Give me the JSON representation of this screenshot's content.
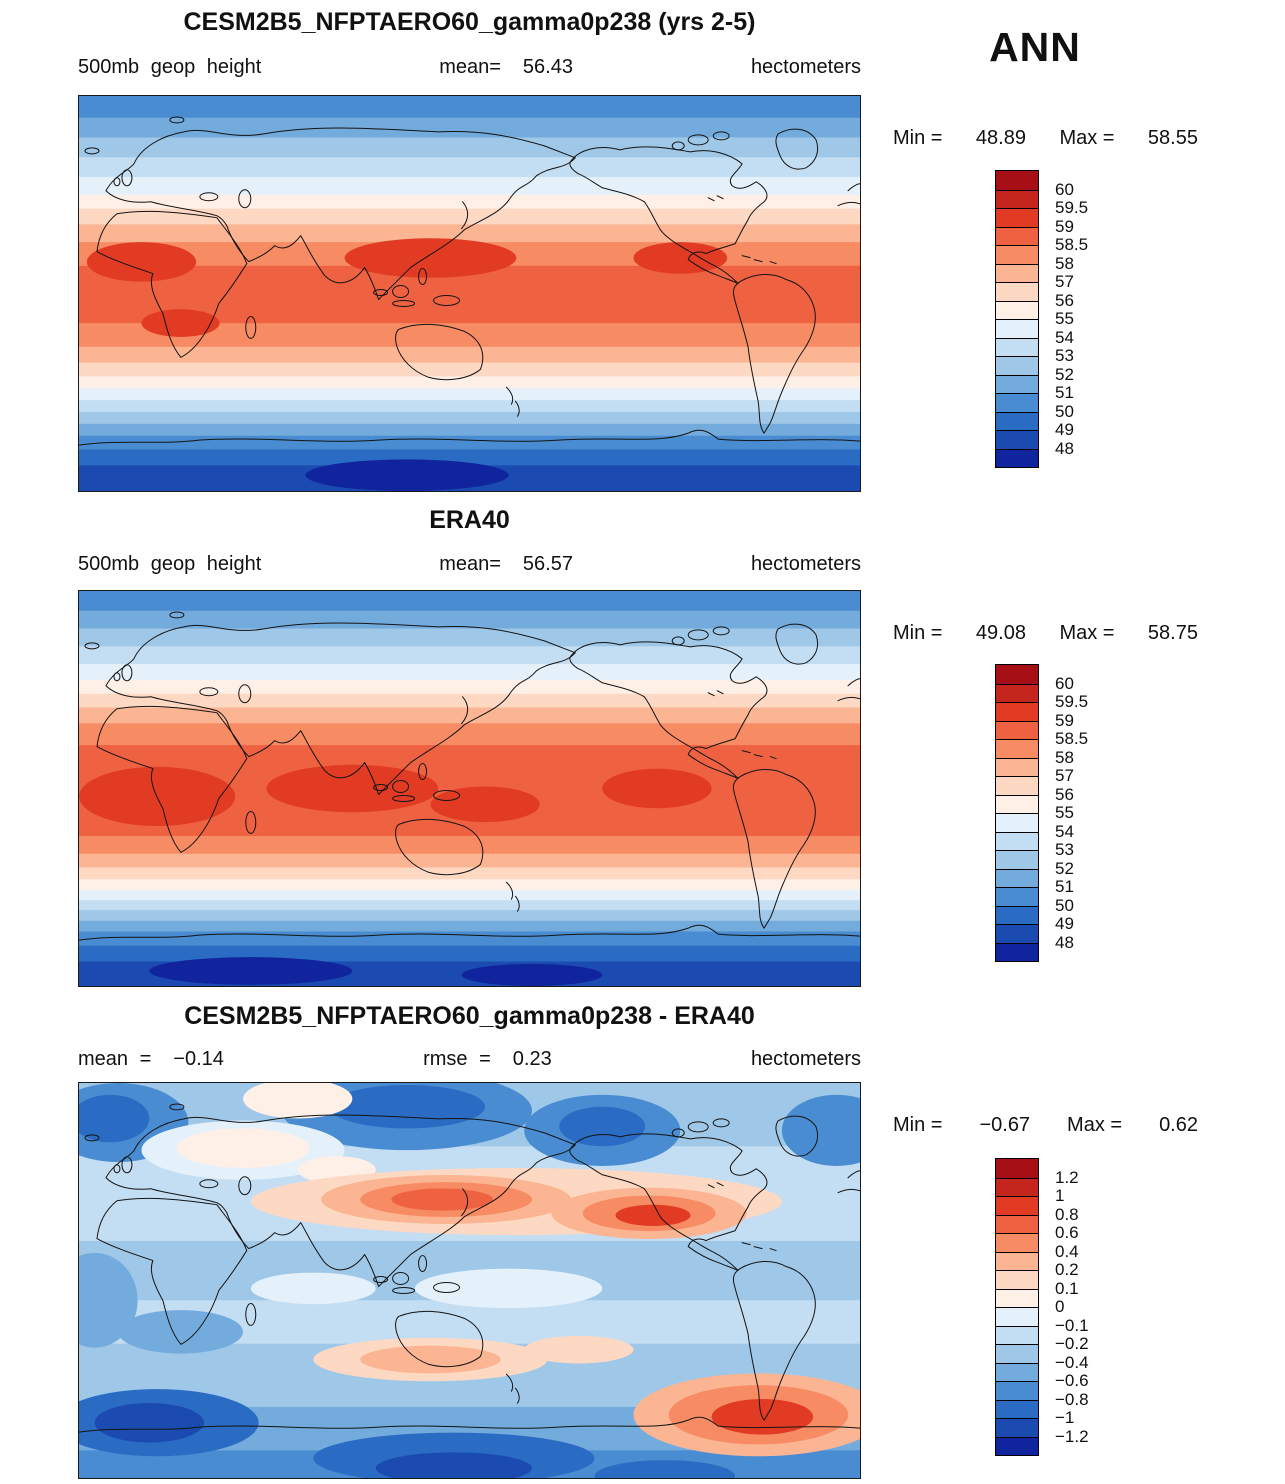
{
  "header": {
    "season": "ANN"
  },
  "panels": [
    {
      "title": "CESM2B5_NFPTAERO60_gamma0p238 (yrs 2-5)",
      "field": "500mb geop height",
      "mean_label": "mean=",
      "mean": "56.43",
      "units": "hectometers",
      "min_label": "Min =",
      "min": "48.89",
      "max_label": "Max =",
      "max": "58.55",
      "colorbar": {
        "labels": [
          "60",
          "59.5",
          "59",
          "58.5",
          "58",
          "57",
          "56",
          "55",
          "54",
          "53",
          "52",
          "51",
          "50",
          "49",
          "48"
        ],
        "colors": [
          "#a50f15",
          "#c4261d",
          "#e13b23",
          "#ef6241",
          "#f68b64",
          "#fbb593",
          "#fdd9c4",
          "#fef0e7",
          "#e4f0fa",
          "#c3ddf2",
          "#9ec7e8",
          "#74abdd",
          "#4a8cd1",
          "#2a6cc4",
          "#1b4bb0",
          "#10249e"
        ]
      }
    },
    {
      "title": "ERA40",
      "field": "500mb geop height",
      "mean_label": "mean=",
      "mean": "56.57",
      "units": "hectometers",
      "min_label": "Min =",
      "min": "49.08",
      "max_label": "Max =",
      "max": "58.75",
      "colorbar": {
        "labels": [
          "60",
          "59.5",
          "59",
          "58.5",
          "58",
          "57",
          "56",
          "55",
          "54",
          "53",
          "52",
          "51",
          "50",
          "49",
          "48"
        ],
        "colors": [
          "#a50f15",
          "#c4261d",
          "#e13b23",
          "#ef6241",
          "#f68b64",
          "#fbb593",
          "#fdd9c4",
          "#fef0e7",
          "#e4f0fa",
          "#c3ddf2",
          "#9ec7e8",
          "#74abdd",
          "#4a8cd1",
          "#2a6cc4",
          "#1b4bb0",
          "#10249e"
        ]
      }
    },
    {
      "title": "CESM2B5_NFPTAERO60_gamma0p238 - ERA40",
      "mean_label": "mean =",
      "mean": "−0.14",
      "rmse_label": "rmse =",
      "rmse": "0.23",
      "units": "hectometers",
      "min_label": "Min =",
      "min": "−0.67",
      "max_label": "Max =",
      "max": "0.62",
      "colorbar": {
        "labels": [
          "1.2",
          "1",
          "0.8",
          "0.6",
          "0.4",
          "0.2",
          "0.1",
          "0",
          "−0.1",
          "−0.2",
          "−0.4",
          "−0.6",
          "−0.8",
          "−1",
          "−1.2"
        ],
        "colors": [
          "#a50f15",
          "#c4261d",
          "#e13b23",
          "#ef6241",
          "#f68b64",
          "#fbb593",
          "#fdd9c4",
          "#fef0e7",
          "#e4f0fa",
          "#c3ddf2",
          "#9ec7e8",
          "#74abdd",
          "#4a8cd1",
          "#2a6cc4",
          "#1b4bb0",
          "#10249e"
        ]
      }
    }
  ],
  "chart_data": [
    {
      "type": "heatmap",
      "subtype": "filled-contour world map, cylindrical equidistant",
      "title": "CESM2B5_NFPTAERO60_gamma0p238 (yrs 2-5)",
      "season": "ANN",
      "variable": "500mb geop height",
      "units": "hectometers",
      "stats": {
        "mean": 56.43,
        "min": 48.89,
        "max": 58.55
      },
      "contour_levels": [
        48,
        49,
        50,
        51,
        52,
        53,
        54,
        55,
        56,
        57,
        58,
        58.5,
        59,
        59.5,
        60
      ],
      "palette_top_to_bottom": [
        "#a50f15",
        "#c4261d",
        "#e13b23",
        "#ef6241",
        "#f68b64",
        "#fbb593",
        "#fdd9c4",
        "#fef0e7",
        "#e4f0fa",
        "#c3ddf2",
        "#9ec7e8",
        "#74abdd",
        "#4a8cd1",
        "#2a6cc4",
        "#1b4bb0",
        "#10249e"
      ],
      "pattern": "zonally banded field: ~58.5 hm across tropics decreasing poleward to ~48-49 hm near Antarctica"
    },
    {
      "type": "heatmap",
      "subtype": "filled-contour world map, cylindrical equidistant",
      "title": "ERA40",
      "season": "ANN",
      "variable": "500mb geop height",
      "units": "hectometers",
      "stats": {
        "mean": 56.57,
        "min": 49.08,
        "max": 58.75
      },
      "contour_levels": [
        48,
        49,
        50,
        51,
        52,
        53,
        54,
        55,
        56,
        57,
        58,
        58.5,
        59,
        59.5,
        60
      ],
      "palette_top_to_bottom": [
        "#a50f15",
        "#c4261d",
        "#e13b23",
        "#ef6241",
        "#f68b64",
        "#fbb593",
        "#fdd9c4",
        "#fef0e7",
        "#e4f0fa",
        "#c3ddf2",
        "#9ec7e8",
        "#74abdd",
        "#4a8cd1",
        "#2a6cc4",
        "#1b4bb0",
        "#10249e"
      ],
      "pattern": "zonally banded field: ~58.5-59 hm across tropics decreasing poleward to ~49 hm near Antarctica"
    },
    {
      "type": "heatmap",
      "subtype": "filled-contour difference map, cylindrical equidistant",
      "title": "CESM2B5_NFPTAERO60_gamma0p238 - ERA40",
      "season": "ANN",
      "variable": "500mb geop height difference",
      "units": "hectometers",
      "stats": {
        "mean": -0.14,
        "rmse": 0.23,
        "min": -0.67,
        "max": 0.62
      },
      "contour_levels": [
        -1.2,
        -1,
        -0.8,
        -0.6,
        -0.4,
        -0.2,
        -0.1,
        0,
        0.1,
        0.2,
        0.4,
        0.6,
        0.8,
        1,
        1.2
      ],
      "palette_top_to_bottom": [
        "#a50f15",
        "#c4261d",
        "#e13b23",
        "#ef6241",
        "#f68b64",
        "#fbb593",
        "#fdd9c4",
        "#fef0e7",
        "#e4f0fa",
        "#c3ddf2",
        "#9ec7e8",
        "#74abdd",
        "#4a8cd1",
        "#2a6cc4",
        "#1b4bb0",
        "#10249e"
      ],
      "pattern": "mostly weak negative (light blue); positive lobes (+0.4 to +0.6) over N Pacific, N America and S Atlantic; negative lobes (-0.4 to -0.7) over Nordic seas, Bering region and Southern Ocean"
    }
  ],
  "map_render": [
    {
      "bands": [
        [
          0.0,
          "#4a8cd1"
        ],
        [
          0.055,
          "#74abdd"
        ],
        [
          0.105,
          "#9ec7e8"
        ],
        [
          0.155,
          "#c3ddf2"
        ],
        [
          0.205,
          "#e4f0fa"
        ],
        [
          0.25,
          "#fef0e7"
        ],
        [
          0.285,
          "#fdd9c4"
        ],
        [
          0.325,
          "#fbb593"
        ],
        [
          0.37,
          "#f68b64"
        ],
        [
          0.43,
          "#ef6241"
        ],
        [
          0.575,
          "#f68b64"
        ],
        [
          0.635,
          "#fbb593"
        ],
        [
          0.675,
          "#fdd9c4"
        ],
        [
          0.71,
          "#fef0e7"
        ],
        [
          0.74,
          "#e4f0fa"
        ],
        [
          0.77,
          "#c3ddf2"
        ],
        [
          0.8,
          "#9ec7e8"
        ],
        [
          0.83,
          "#74abdd"
        ],
        [
          0.86,
          "#4a8cd1"
        ],
        [
          0.895,
          "#2a6cc4"
        ],
        [
          0.935,
          "#1b4bb0"
        ]
      ],
      "blobs": [
        [
          0.08,
          0.42,
          0.07,
          0.05,
          "#e13b23"
        ],
        [
          0.13,
          0.575,
          0.05,
          0.035,
          "#e13b23"
        ],
        [
          0.45,
          0.41,
          0.11,
          0.05,
          "#e13b23"
        ],
        [
          0.77,
          0.41,
          0.06,
          0.04,
          "#e13b23"
        ],
        [
          0.42,
          0.96,
          0.13,
          0.04,
          "#10249e"
        ]
      ]
    },
    {
      "bands": [
        [
          0.0,
          "#4a8cd1"
        ],
        [
          0.05,
          "#74abdd"
        ],
        [
          0.095,
          "#9ec7e8"
        ],
        [
          0.14,
          "#c3ddf2"
        ],
        [
          0.185,
          "#e4f0fa"
        ],
        [
          0.225,
          "#fef0e7"
        ],
        [
          0.26,
          "#fdd9c4"
        ],
        [
          0.295,
          "#fbb593"
        ],
        [
          0.335,
          "#f68b64"
        ],
        [
          0.39,
          "#ef6241"
        ],
        [
          0.62,
          "#f68b64"
        ],
        [
          0.665,
          "#fbb593"
        ],
        [
          0.7,
          "#fdd9c4"
        ],
        [
          0.73,
          "#fef0e7"
        ],
        [
          0.757,
          "#e4f0fa"
        ],
        [
          0.783,
          "#c3ddf2"
        ],
        [
          0.808,
          "#9ec7e8"
        ],
        [
          0.835,
          "#74abdd"
        ],
        [
          0.862,
          "#4a8cd1"
        ],
        [
          0.898,
          "#2a6cc4"
        ],
        [
          0.938,
          "#1b4bb0"
        ]
      ],
      "blobs": [
        [
          0.1,
          0.52,
          0.1,
          0.075,
          "#e13b23"
        ],
        [
          0.35,
          0.5,
          0.11,
          0.06,
          "#e13b23"
        ],
        [
          0.52,
          0.54,
          0.07,
          0.045,
          "#e13b23"
        ],
        [
          0.74,
          0.5,
          0.07,
          0.05,
          "#e13b23"
        ],
        [
          0.22,
          0.962,
          0.13,
          0.035,
          "#10249e"
        ],
        [
          0.58,
          0.972,
          0.09,
          0.028,
          "#10249e"
        ]
      ]
    },
    {
      "bands": [
        [
          0.0,
          "#9ec7e8"
        ],
        [
          0.16,
          "#c3ddf2"
        ],
        [
          0.4,
          "#9ec7e8"
        ],
        [
          0.55,
          "#c3ddf2"
        ],
        [
          0.66,
          "#9ec7e8"
        ],
        [
          0.82,
          "#74abdd"
        ],
        [
          0.93,
          "#4a8cd1"
        ]
      ],
      "blobs": [
        [
          0.05,
          0.1,
          0.09,
          0.1,
          "#4a8cd1"
        ],
        [
          0.04,
          0.09,
          0.05,
          0.06,
          "#2a6cc4"
        ],
        [
          0.42,
          0.07,
          0.16,
          0.1,
          "#4a8cd1"
        ],
        [
          0.42,
          0.06,
          0.1,
          0.055,
          "#2a6cc4"
        ],
        [
          0.67,
          0.12,
          0.1,
          0.09,
          "#4a8cd1"
        ],
        [
          0.67,
          0.11,
          0.055,
          0.05,
          "#2a6cc4"
        ],
        [
          0.97,
          0.12,
          0.07,
          0.09,
          "#4a8cd1"
        ],
        [
          0.28,
          0.04,
          0.07,
          0.05,
          "#fef0e7"
        ],
        [
          0.21,
          0.17,
          0.13,
          0.075,
          "#e4f0fa"
        ],
        [
          0.21,
          0.165,
          0.085,
          0.05,
          "#fef0e7"
        ],
        [
          0.33,
          0.22,
          0.05,
          0.035,
          "#fef0e7"
        ],
        [
          0.56,
          0.3,
          0.34,
          0.085,
          "#fdd9c4"
        ],
        [
          0.47,
          0.295,
          0.16,
          0.062,
          "#fbb593"
        ],
        [
          0.47,
          0.295,
          0.11,
          0.044,
          "#f68b64"
        ],
        [
          0.465,
          0.295,
          0.065,
          0.028,
          "#ef6241"
        ],
        [
          0.73,
          0.33,
          0.125,
          0.065,
          "#fbb593"
        ],
        [
          0.73,
          0.33,
          0.085,
          0.045,
          "#f68b64"
        ],
        [
          0.735,
          0.335,
          0.048,
          0.027,
          "#e13b23"
        ],
        [
          0.55,
          0.52,
          0.12,
          0.05,
          "#e4f0fa"
        ],
        [
          0.3,
          0.52,
          0.08,
          0.04,
          "#e4f0fa"
        ],
        [
          0.02,
          0.55,
          0.055,
          0.12,
          "#74abdd"
        ],
        [
          0.13,
          0.63,
          0.08,
          0.055,
          "#74abdd"
        ],
        [
          0.45,
          0.7,
          0.15,
          0.055,
          "#fdd9c4"
        ],
        [
          0.45,
          0.7,
          0.09,
          0.035,
          "#fbb593"
        ],
        [
          0.64,
          0.675,
          0.07,
          0.035,
          "#fdd9c4"
        ],
        [
          0.87,
          0.84,
          0.16,
          0.105,
          "#fbb593"
        ],
        [
          0.87,
          0.84,
          0.115,
          0.075,
          "#f68b64"
        ],
        [
          0.875,
          0.845,
          0.065,
          0.045,
          "#e13b23"
        ],
        [
          0.1,
          0.86,
          0.13,
          0.085,
          "#2a6cc4"
        ],
        [
          0.09,
          0.86,
          0.07,
          0.05,
          "#1b4bb0"
        ],
        [
          0.48,
          0.95,
          0.18,
          0.065,
          "#2a6cc4"
        ],
        [
          0.48,
          0.975,
          0.1,
          0.04,
          "#1b4bb0"
        ],
        [
          0.75,
          0.995,
          0.09,
          0.04,
          "#2a6cc4"
        ]
      ]
    }
  ]
}
